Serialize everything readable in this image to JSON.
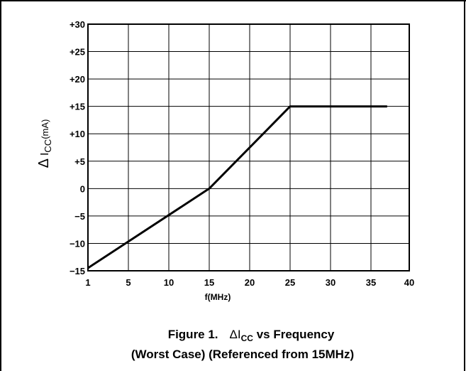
{
  "chart_data": {
    "type": "line",
    "title": "",
    "xlabel": "f(MHz)",
    "ylabel": {
      "delta": "Δ",
      "main": "I",
      "sub": "CC",
      "unit": "(mA)"
    },
    "x_ticks": [
      "1",
      "5",
      "10",
      "15",
      "20",
      "25",
      "30",
      "35",
      "40"
    ],
    "y_ticks": [
      "−15",
      "−10",
      "−5",
      "0",
      "+5",
      "+10",
      "+15",
      "+20",
      "+25",
      "+30"
    ],
    "xlim": [
      1,
      40
    ],
    "ylim": [
      -15,
      30
    ],
    "grid": true,
    "series": [
      {
        "x": [
          1,
          15,
          25,
          37
        ],
        "y": [
          -14.5,
          0,
          15,
          15
        ],
        "color": "#000000"
      }
    ]
  },
  "caption": {
    "line1": {
      "prefix": "Figure 1.",
      "delta": "ΔI",
      "sub": "CC",
      "suffix": " vs Frequency"
    },
    "line2": "(Worst Case) (Referenced from 15MHz)"
  }
}
